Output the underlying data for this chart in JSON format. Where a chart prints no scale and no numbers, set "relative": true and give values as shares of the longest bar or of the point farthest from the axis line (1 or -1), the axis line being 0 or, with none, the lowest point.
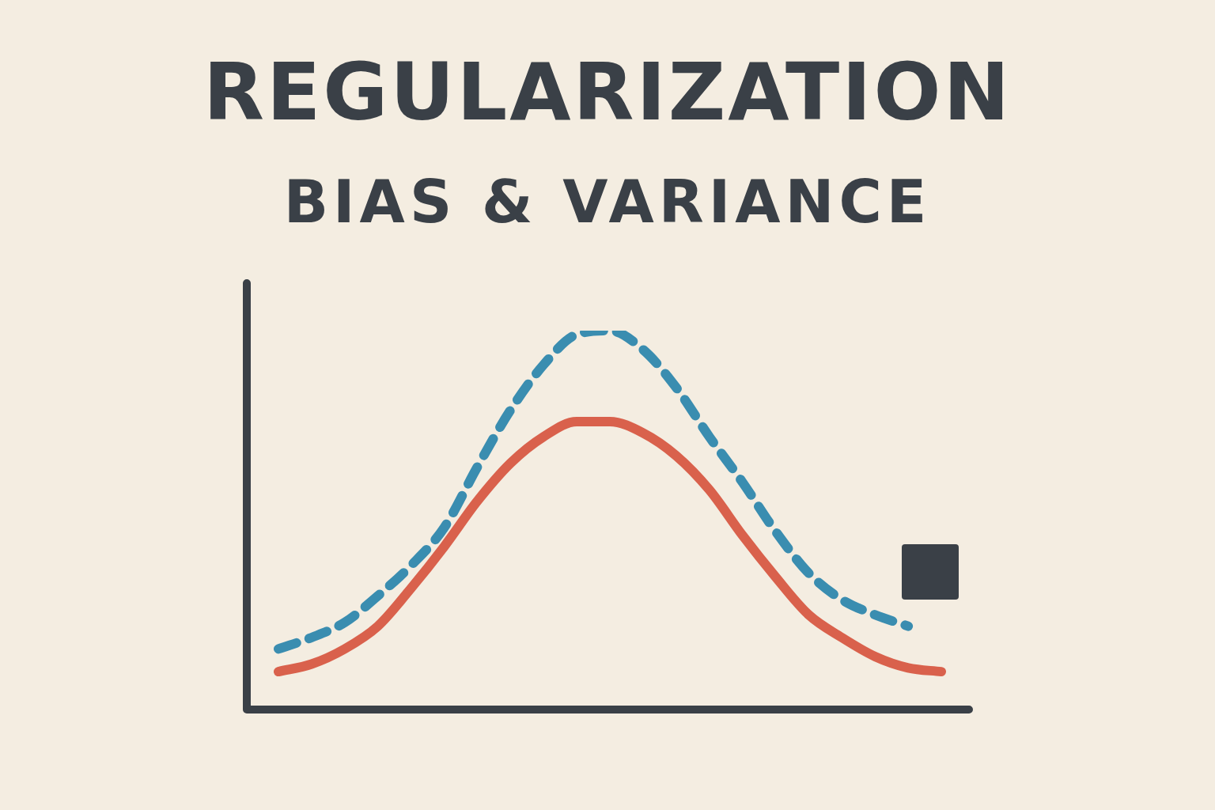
{
  "chart_data": {
    "type": "line",
    "title": "REGULARIZATION",
    "subtitle": "BIAS & VARIANCE",
    "relative": true,
    "marker": "none",
    "categories": [
      null,
      null,
      null,
      null,
      null,
      null,
      null,
      null,
      null,
      null,
      null,
      null,
      null,
      null,
      null,
      null,
      null,
      null,
      null,
      null,
      null
    ],
    "series": [
      {
        "color": "#3a8db0",
        "line_style": "dashed",
        "values": [
          0.16,
          0.19,
          0.23,
          0.3,
          0.38,
          0.48,
          0.64,
          0.79,
          0.91,
          0.99,
          1.0,
          0.95,
          0.85,
          0.72,
          0.6,
          0.47,
          0.36,
          0.29,
          0.25,
          0.22,
          null
        ]
      },
      {
        "color": "#d9614c",
        "line_style": "solid",
        "values": [
          0.1,
          0.12,
          0.16,
          0.22,
          0.32,
          0.43,
          0.55,
          0.65,
          0.72,
          0.76,
          0.76,
          0.73,
          0.67,
          0.58,
          0.46,
          0.35,
          0.25,
          0.19,
          0.14,
          0.11,
          0.1
        ]
      }
    ]
  }
}
